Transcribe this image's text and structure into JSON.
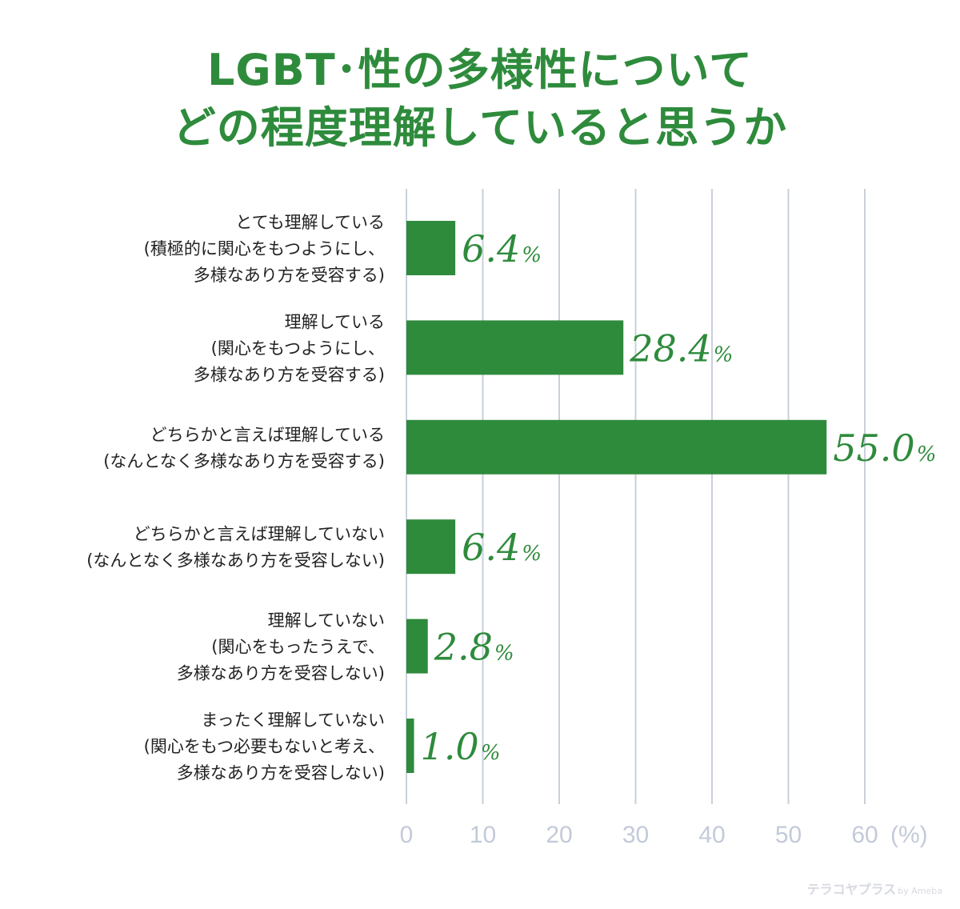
{
  "title_lines": [
    "LGBT･性の多様性について",
    "どの程度理解していると思うか"
  ],
  "chart_data": {
    "type": "bar",
    "orientation": "horizontal",
    "categories": [
      [
        "とても理解している",
        "(積極的に関心をもつようにし、",
        "多様なあり方を受容する)"
      ],
      [
        "理解している",
        "(関心をもつようにし、",
        "多様なあり方を受容する)"
      ],
      [
        "どちらかと言えば理解している",
        "(なんとなく多様なあり方を受容する)"
      ],
      [
        "どちらかと言えば理解していない",
        "(なんとなく多様なあり方を受容しない)"
      ],
      [
        "理解していない",
        "(関心をもったうえで、",
        "多様なあり方を受容しない)"
      ],
      [
        "まったく理解していない",
        "(関心をもつ必要もないと考え、",
        "多様なあり方を受容しない)"
      ]
    ],
    "values": [
      6.4,
      28.4,
      55.0,
      6.4,
      2.8,
      1.0
    ],
    "value_labels": [
      "6.4",
      "28.4",
      "55.0",
      "6.4",
      "2.8",
      "1.0"
    ],
    "value_unit": "%",
    "xlim": [
      0,
      60
    ],
    "x_ticks": [
      0,
      10,
      20,
      30,
      40,
      50,
      60
    ],
    "x_tick_labels": [
      "0",
      "10",
      "20",
      "30",
      "40",
      "50",
      "60"
    ],
    "x_unit_label": "(%)",
    "grid": true,
    "colors": {
      "bar": "#2e8b3c",
      "grid": "#c9d0dc",
      "tick": "#c3cad9",
      "title": "#2e8b3c"
    }
  },
  "watermark": {
    "brand": "テラコヤプラス",
    "by": "by Ameba"
  }
}
